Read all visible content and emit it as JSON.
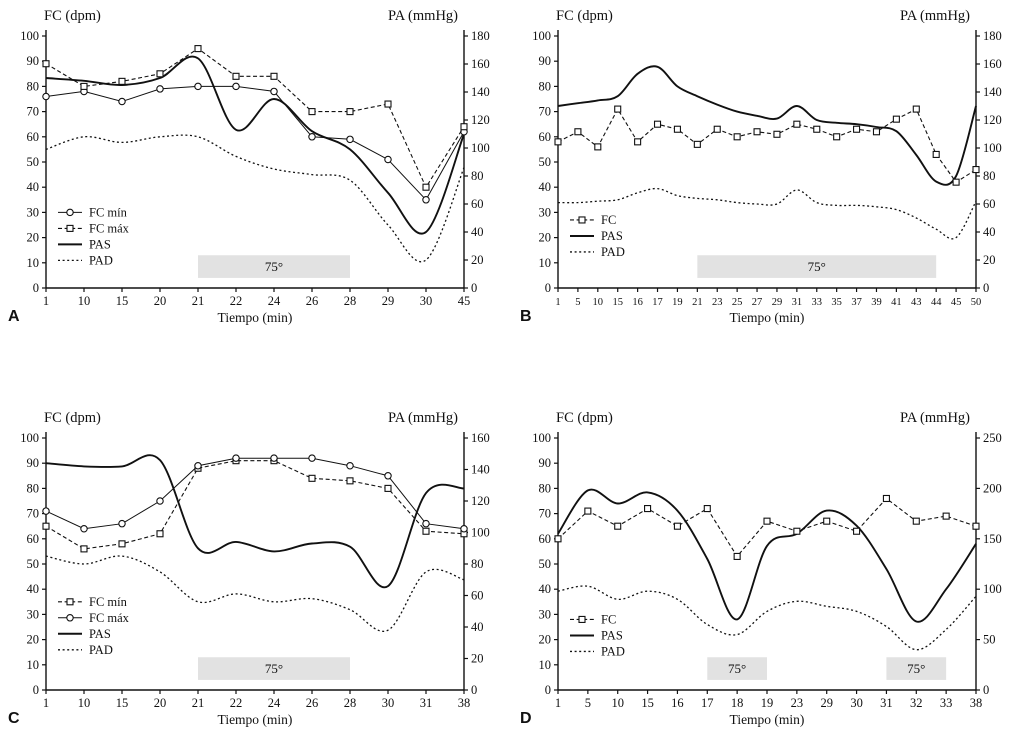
{
  "chart_data": [
    {
      "type": "line",
      "panel": "A",
      "ylabel_left": "FC (dpm)",
      "ylabel_right": "PA (mmHg)",
      "xlabel": "Tiempo (min)",
      "y_left": {
        "min": 0,
        "max": 100,
        "step": 10
      },
      "y_right": {
        "min": 0,
        "max": 180,
        "step": 20
      },
      "categories": [
        "1",
        "10",
        "15",
        "20",
        "21",
        "22",
        "24",
        "26",
        "28",
        "29",
        "30",
        "45"
      ],
      "tilt_bands": [
        {
          "from": 4,
          "to": 8,
          "label": "75°"
        }
      ],
      "legend_pos": {
        "top_units": 30
      },
      "series": [
        {
          "name": "FC mín",
          "axis": "left",
          "style": "circle",
          "values": [
            76,
            78,
            74,
            79,
            80,
            80,
            78,
            60,
            59,
            51,
            35,
            62
          ]
        },
        {
          "name": "FC máx",
          "axis": "left",
          "style": "square-dash",
          "values": [
            89,
            80,
            82,
            85,
            95,
            84,
            84,
            70,
            70,
            73,
            40,
            64
          ]
        },
        {
          "name": "PAS",
          "axis": "right",
          "style": "solid",
          "values": [
            150,
            148,
            145,
            150,
            164,
            113,
            135,
            112,
            99,
            68,
            40,
            110
          ]
        },
        {
          "name": "PAD",
          "axis": "right",
          "style": "dotted",
          "values": [
            99,
            108,
            104,
            108,
            108,
            94,
            85,
            81,
            77,
            45,
            20,
            86
          ]
        }
      ]
    },
    {
      "type": "line",
      "panel": "B",
      "ylabel_left": "FC (dpm)",
      "ylabel_right": "PA (mmHg)",
      "xlabel": "Tiempo (min)",
      "y_left": {
        "min": 0,
        "max": 100,
        "step": 10
      },
      "y_right": {
        "min": 0,
        "max": 180,
        "step": 20
      },
      "categories": [
        "1",
        "5",
        "10",
        "15",
        "16",
        "17",
        "19",
        "21",
        "23",
        "25",
        "27",
        "29",
        "31",
        "33",
        "35",
        "37",
        "39",
        "41",
        "43",
        "44",
        "45",
        "50"
      ],
      "tilt_bands": [
        {
          "from": 7,
          "to": 19,
          "label": "75°"
        }
      ],
      "legend_pos": {
        "top_units": 27
      },
      "series": [
        {
          "name": "FC",
          "axis": "left",
          "style": "square-dash",
          "values": [
            58,
            62,
            56,
            71,
            58,
            65,
            63,
            57,
            63,
            60,
            62,
            61,
            65,
            63,
            60,
            63,
            62,
            67,
            71,
            53,
            42,
            47
          ]
        },
        {
          "name": "PAS",
          "axis": "right",
          "style": "solid",
          "values": [
            130,
            132,
            134,
            137,
            153,
            158,
            144,
            137,
            131,
            126,
            123,
            121,
            130,
            120,
            118,
            117,
            115,
            112,
            95,
            76,
            80,
            130
          ]
        },
        {
          "name": "PAD",
          "axis": "right",
          "style": "dotted",
          "values": [
            61,
            61,
            62,
            63,
            68,
            71,
            66,
            64,
            63,
            61,
            60,
            60,
            70,
            61,
            59,
            59,
            58,
            56,
            50,
            42,
            36,
            62
          ]
        }
      ]
    },
    {
      "type": "line",
      "panel": "C",
      "ylabel_left": "FC (dpm)",
      "ylabel_right": "PA (mmHg)",
      "xlabel": "Tiempo (min)",
      "y_left": {
        "min": 0,
        "max": 100,
        "step": 10
      },
      "y_right": {
        "min": 0,
        "max": 160,
        "step": 20
      },
      "categories": [
        "1",
        "10",
        "15",
        "20",
        "21",
        "22",
        "24",
        "26",
        "28",
        "30",
        "31",
        "38"
      ],
      "tilt_bands": [
        {
          "from": 4,
          "to": 8,
          "label": "75°"
        }
      ],
      "legend_pos": {
        "top_units": 35
      },
      "series": [
        {
          "name": "FC mín",
          "axis": "left",
          "style": "square-dash",
          "values": [
            65,
            56,
            58,
            62,
            88,
            91,
            91,
            84,
            83,
            80,
            63,
            62
          ]
        },
        {
          "name": "FC máx",
          "axis": "left",
          "style": "circle",
          "values": [
            71,
            64,
            66,
            75,
            89,
            92,
            92,
            92,
            89,
            85,
            66,
            64
          ]
        },
        {
          "name": "PAS",
          "axis": "right",
          "style": "solid",
          "values": [
            144,
            142,
            142,
            146,
            90,
            94,
            88,
            93,
            91,
            66,
            125,
            128
          ]
        },
        {
          "name": "PAD",
          "axis": "right",
          "style": "dotted",
          "values": [
            85,
            80,
            85,
            75,
            56,
            61,
            56,
            58,
            51,
            38,
            75,
            70
          ]
        }
      ]
    },
    {
      "type": "line",
      "panel": "D",
      "ylabel_left": "FC (dpm)",
      "ylabel_right": "PA (mmHg)",
      "xlabel": "Tiempo (min)",
      "y_left": {
        "min": 0,
        "max": 100,
        "step": 10
      },
      "y_right": {
        "min": 0,
        "max": 250,
        "step": 50
      },
      "categories": [
        "1",
        "5",
        "10",
        "15",
        "16",
        "17",
        "18",
        "19",
        "23",
        "29",
        "30",
        "31",
        "32",
        "33",
        "38"
      ],
      "tilt_bands": [
        {
          "from": 5,
          "to": 7,
          "label": "75°"
        },
        {
          "from": 11,
          "to": 13,
          "label": "75°"
        }
      ],
      "legend_pos": {
        "top_units": 28
      },
      "series": [
        {
          "name": "FC",
          "axis": "left",
          "style": "square-dash",
          "values": [
            60,
            71,
            65,
            72,
            65,
            72,
            53,
            67,
            63,
            67,
            63,
            76,
            67,
            69,
            65
          ]
        },
        {
          "name": "PAS",
          "axis": "right",
          "style": "solid",
          "values": [
            155,
            198,
            185,
            196,
            178,
            130,
            70,
            143,
            155,
            178,
            163,
            120,
            68,
            100,
            145
          ]
        },
        {
          "name": "PAD",
          "axis": "right",
          "style": "dotted",
          "values": [
            98,
            103,
            90,
            98,
            90,
            65,
            55,
            78,
            88,
            83,
            78,
            63,
            40,
            60,
            93
          ]
        }
      ]
    }
  ]
}
